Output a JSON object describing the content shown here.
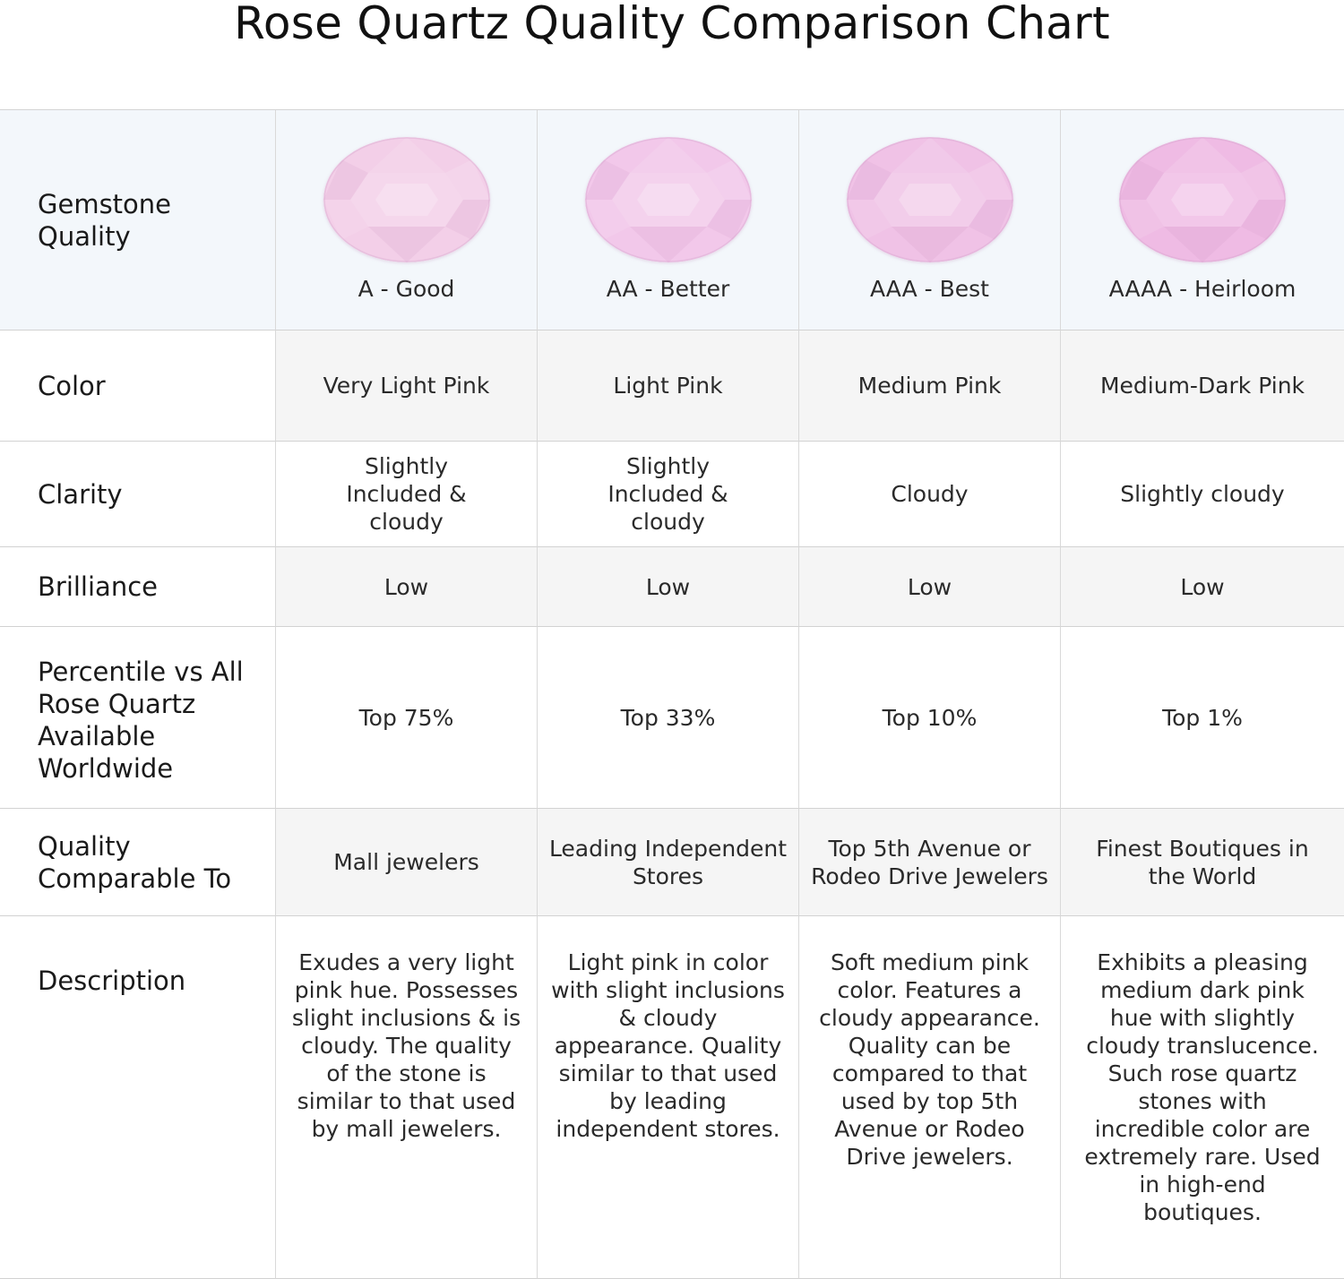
{
  "title": "Rose Quartz Quality Comparison Chart",
  "colors": {
    "header_bg": "#f3f7fb",
    "shade_bg": "#f5f5f5",
    "gem_colors": [
      "#f3cfe8",
      "#f2c8ea",
      "#f0c2e6",
      "#efbbe4"
    ]
  },
  "chart_data": {
    "type": "table",
    "columns": [
      "A - Good",
      "AA - Better",
      "AAA - Best",
      "AAAA - Heirloom"
    ],
    "rows": [
      {
        "label": "Gemstone Quality",
        "values": [
          "A - Good",
          "AA - Better",
          "AAA - Best",
          "AAAA - Heirloom"
        ]
      },
      {
        "label": "Color",
        "values": [
          "Very Light Pink",
          "Light Pink",
          "Medium Pink",
          "Medium-Dark Pink"
        ]
      },
      {
        "label": "Clarity",
        "values": [
          "Slightly Included & cloudy",
          "Slightly Included & cloudy",
          "Cloudy",
          "Slightly cloudy"
        ]
      },
      {
        "label": "Brilliance",
        "values": [
          "Low",
          "Low",
          "Low",
          "Low"
        ]
      },
      {
        "label": "Percentile vs All Rose Quartz Available Worldwide",
        "values": [
          "Top 75%",
          "Top 33%",
          "Top 10%",
          "Top 1%"
        ]
      },
      {
        "label": "Quality Comparable To",
        "values": [
          "Mall jewelers",
          "Leading Independent Stores",
          "Top 5th Avenue or Rodeo Drive Jewelers",
          "Finest Boutiques in the World"
        ]
      },
      {
        "label": "Description",
        "values": [
          "Exudes a very light pink hue. Possesses slight inclusions & is cloudy. The quality of the stone is similar to that used by mall jewelers.",
          "Light pink in color with slight inclusions & cloudy appearance. Quality similar to that used by leading independent stores.",
          "Soft medium pink color. Features a cloudy appearance. Quality can be compared to that used by top 5th Avenue or Rodeo Drive jewelers.",
          "Exhibits a pleasing medium dark pink hue with slightly cloudy translucence. Such rose quartz stones with incredible color are extremely rare. Used in high-end boutiques."
        ]
      }
    ]
  }
}
